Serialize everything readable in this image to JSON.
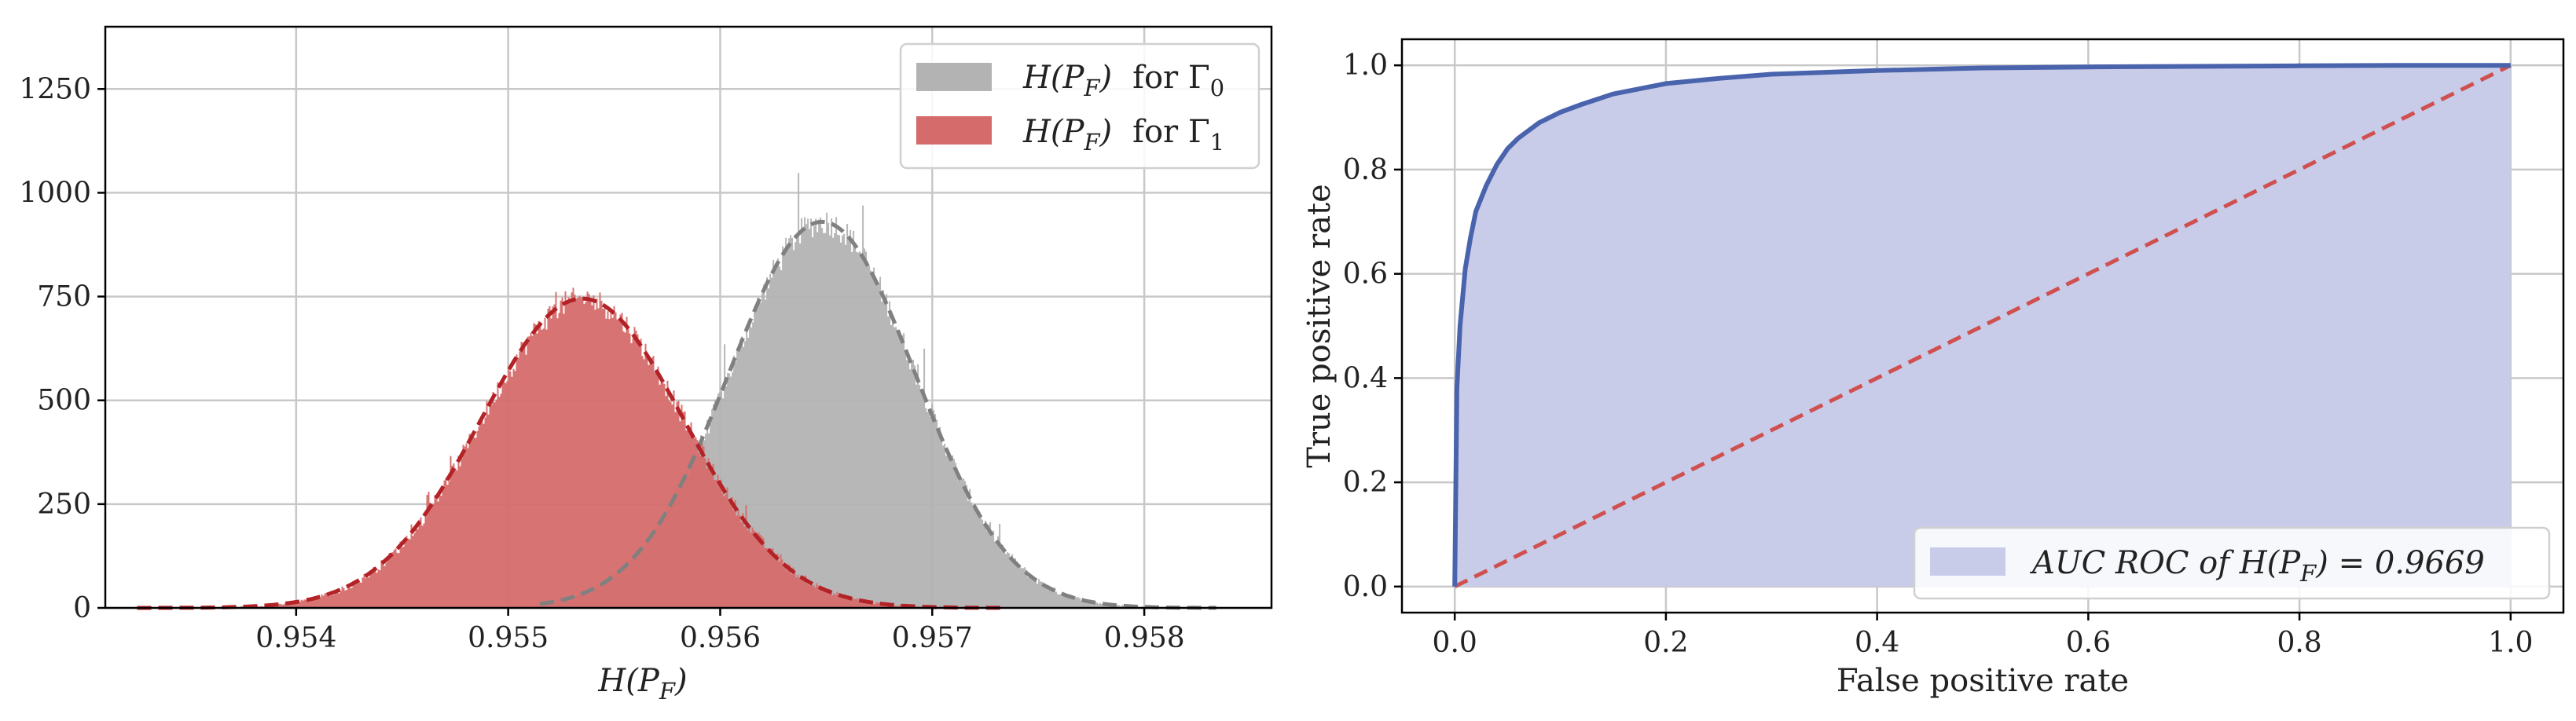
{
  "chart_data": [
    {
      "type": "bar",
      "subtype": "histogram",
      "xlabel_italic": "H(P",
      "xlabel_sub": "F",
      "xlabel_close": ")",
      "xlim": [
        0.9531,
        0.9586
      ],
      "ylim": [
        0,
        1400
      ],
      "xticks": [
        "0.954",
        "0.955",
        "0.956",
        "0.957",
        "0.958"
      ],
      "xtick_values": [
        0.954,
        0.955,
        0.956,
        0.957,
        0.958
      ],
      "yticks": [
        "0",
        "250",
        "500",
        "750",
        "1000",
        "1250"
      ],
      "ytick_values": [
        0,
        250,
        500,
        750,
        1000,
        1250
      ],
      "grid": true,
      "legend_position": "top-right",
      "series": [
        {
          "name": "H(P_F) for Γ0",
          "legend_main": "H(P",
          "legend_sub": "F",
          "legend_close": ")",
          "legend_for": "for Γ",
          "legend_index": "0",
          "color": "#b3b3b3",
          "fit_color": "#808080",
          "mean": 0.95648,
          "std": 0.00044,
          "peak": 930,
          "xrange": [
            0.95515,
            0.95835
          ]
        },
        {
          "name": "H(P_F) for Γ1",
          "legend_main": "H(P",
          "legend_sub": "F",
          "legend_close": ")",
          "legend_for": "for Γ",
          "legend_index": "1",
          "color": "#d56b6a",
          "fit_color": "#b32226",
          "mean": 0.95535,
          "std": 0.00048,
          "peak": 745,
          "xrange": [
            0.95325,
            0.95735
          ]
        }
      ]
    },
    {
      "type": "area",
      "subtype": "roc",
      "xlabel": "False positive rate",
      "ylabel": "True positive rate",
      "xlim": [
        -0.05,
        1.05
      ],
      "ylim": [
        -0.05,
        1.05
      ],
      "xticks": [
        "0.0",
        "0.2",
        "0.4",
        "0.6",
        "0.8",
        "1.0"
      ],
      "xtick_values": [
        0,
        0.2,
        0.4,
        0.6,
        0.8,
        1.0
      ],
      "yticks": [
        "0.0",
        "0.2",
        "0.4",
        "0.6",
        "0.8",
        "1.0"
      ],
      "ytick_values": [
        0,
        0.2,
        0.4,
        0.6,
        0.8,
        1.0
      ],
      "grid": true,
      "legend_position": "bottom-right",
      "roc_color": "#4a63ad",
      "fill_color": "#c8cce8",
      "chance_color": "#d05050",
      "roc_x": [
        0,
        0.002,
        0.005,
        0.01,
        0.015,
        0.02,
        0.03,
        0.04,
        0.05,
        0.06,
        0.08,
        0.1,
        0.12,
        0.15,
        0.2,
        0.25,
        0.3,
        0.4,
        0.5,
        0.6,
        0.7,
        0.8,
        0.9,
        1.0
      ],
      "roc_y": [
        0,
        0.38,
        0.5,
        0.61,
        0.67,
        0.72,
        0.77,
        0.81,
        0.84,
        0.86,
        0.89,
        0.91,
        0.925,
        0.945,
        0.965,
        0.975,
        0.983,
        0.99,
        0.995,
        0.997,
        0.998,
        0.999,
        1.0,
        1.0
      ],
      "chance_x": [
        0,
        1
      ],
      "chance_y": [
        0,
        1
      ],
      "legend_prefix": "AUC ROC of H(P",
      "legend_sub": "F",
      "legend_suffix": ") = 0.9669",
      "auc": "0.9669"
    }
  ]
}
